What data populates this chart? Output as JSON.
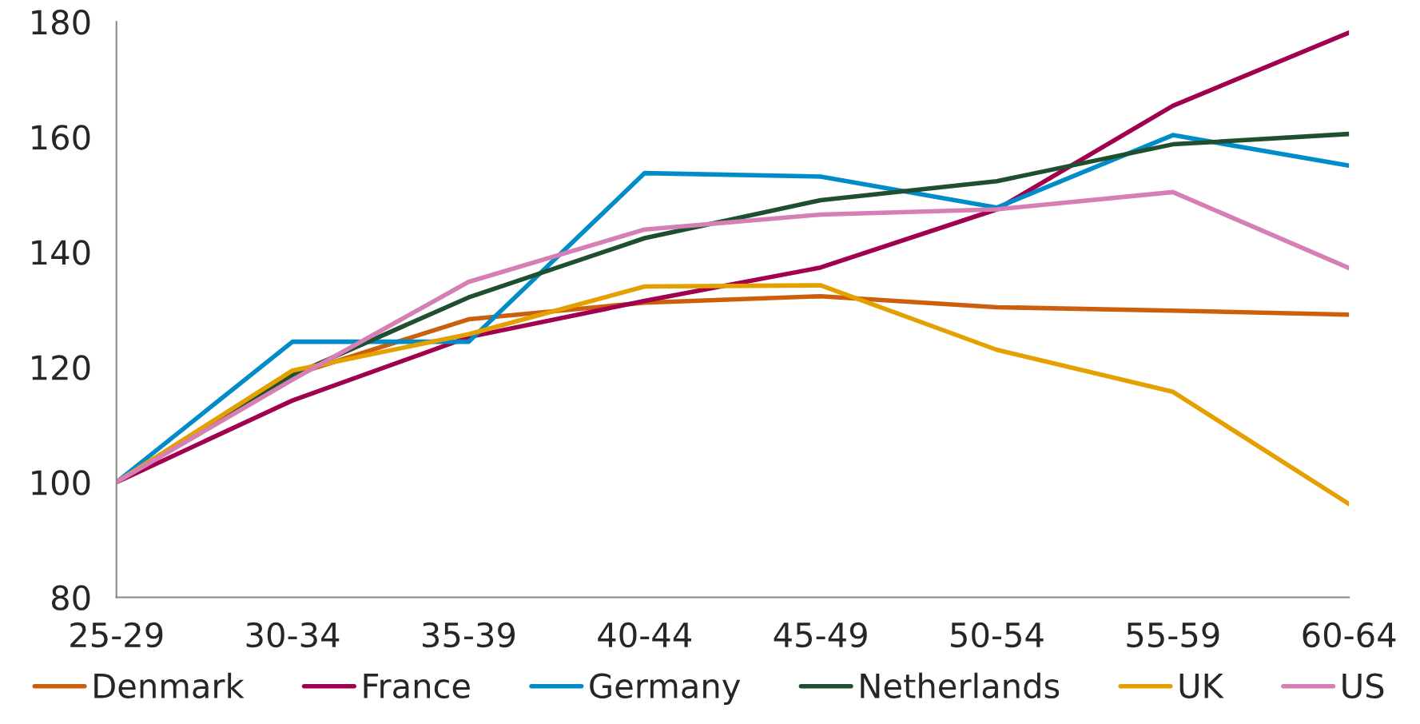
{
  "chart_data": {
    "type": "line",
    "categories": [
      "25-29",
      "30-34",
      "35-39",
      "40-44",
      "45-49",
      "50-54",
      "55-59",
      "60-64"
    ],
    "series": [
      {
        "name": "Denmark",
        "color": "#cc5f0e",
        "values": [
          100,
          118.6,
          128.3,
          131.2,
          132.3,
          130.4,
          129.8,
          129.1
        ]
      },
      {
        "name": "France",
        "color": "#a0004e",
        "values": [
          100,
          114.2,
          125.2,
          131.5,
          137.3,
          147.4,
          165.4,
          178.1
        ]
      },
      {
        "name": "Germany",
        "color": "#008cc8",
        "values": [
          100,
          124.4,
          124.4,
          153.7,
          153.1,
          147.7,
          160.3,
          155.0
        ]
      },
      {
        "name": "Netherlands",
        "color": "#1e4f2e",
        "values": [
          100,
          118.6,
          132.1,
          142.4,
          149.0,
          152.3,
          158.7,
          160.5
        ]
      },
      {
        "name": "UK",
        "color": "#e3a000",
        "values": [
          100,
          119.4,
          125.7,
          134.0,
          134.2,
          123.0,
          115.7,
          96.2
        ]
      },
      {
        "name": "US",
        "color": "#d67fb4",
        "values": [
          100,
          117.8,
          134.8,
          143.9,
          146.5,
          147.4,
          150.4,
          137.2
        ]
      }
    ],
    "ylim": [
      80,
      180
    ],
    "yticks": [
      80,
      100,
      120,
      140,
      160,
      180
    ],
    "grid": false,
    "legend": "bottom",
    "marker": "none",
    "line_style": "solid"
  }
}
